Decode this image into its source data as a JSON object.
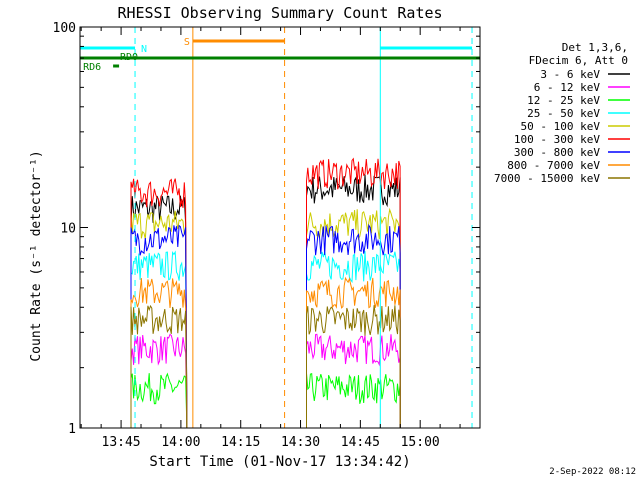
{
  "chart_data": {
    "type": "line",
    "title": "RHESSI Observing Summary Count Rates",
    "xlabel": "Start Time (01-Nov-17 13:34:42)",
    "ylabel": "Count Rate (s⁻¹ detector⁻¹)",
    "x_ticks": [
      "13:45",
      "14:00",
      "14:15",
      "14:30",
      "14:45",
      "15:00"
    ],
    "x_tick_minutes": [
      45,
      60,
      75,
      90,
      105,
      120
    ],
    "xlim_minutes": [
      34.7,
      135
    ],
    "y_scale": "log",
    "ylim": [
      1,
      100
    ],
    "y_ticks": [
      1,
      10,
      100
    ],
    "grid": false,
    "legend_placement": "right",
    "legend_header": [
      "Det 1,3,6,",
      "FDecim 6, Att 0"
    ],
    "series": [
      {
        "name": "3 - 6 keV",
        "color": "#000000",
        "level": 12.5
      },
      {
        "name": "6 - 12 keV",
        "color": "#ff00ff",
        "level": 2.5
      },
      {
        "name": "12 - 25 keV",
        "color": "#00ff00",
        "level": 1.6
      },
      {
        "name": "25 - 50 keV",
        "color": "#00ffff",
        "level": 6.5
      },
      {
        "name": "50 - 100 keV",
        "color": "#cccc00",
        "level": 10.5
      },
      {
        "name": "100 - 300 keV",
        "color": "#ff0000",
        "level": 15.0
      },
      {
        "name": "300 - 800 keV",
        "color": "#0000ff",
        "level": 8.8
      },
      {
        "name": "800 - 7000 keV",
        "color": "#ff8c00",
        "level": 4.8
      },
      {
        "name": "7000 - 15000 keV",
        "color": "#8b7500",
        "level": 3.5
      }
    ],
    "data_intervals_minutes": [
      [
        47.5,
        61.5
      ],
      [
        91.5,
        115
      ]
    ],
    "annotations": [
      {
        "label": "N",
        "color": "#00ffff",
        "intervals_minutes": [
          [
            34.7,
            48.5
          ],
          [
            110,
            133
          ]
        ]
      },
      {
        "label": "S",
        "color": "#ff8c00",
        "intervals_minutes": [
          [
            63,
            86
          ]
        ]
      },
      {
        "label": "RD0",
        "color": "#008000",
        "intervals_minutes": [
          [
            34.7,
            135
          ]
        ]
      },
      {
        "label": "RD6",
        "color": "#008000",
        "intervals_minutes": [
          [
            43,
            44.5
          ]
        ]
      }
    ],
    "vertical_markers": [
      {
        "minute": 34.7,
        "color": "#00ffff",
        "style": "solid"
      },
      {
        "minute": 48.5,
        "color": "#00ffff",
        "style": "dashed"
      },
      {
        "minute": 63,
        "color": "#ff8c00",
        "style": "solid"
      },
      {
        "minute": 86,
        "color": "#ff8c00",
        "style": "dashed"
      },
      {
        "minute": 110,
        "color": "#00ffff",
        "style": "solid"
      },
      {
        "minute": 133,
        "color": "#00ffff",
        "style": "dashed"
      }
    ]
  },
  "footer_date": "2-Sep-2022 08:12"
}
